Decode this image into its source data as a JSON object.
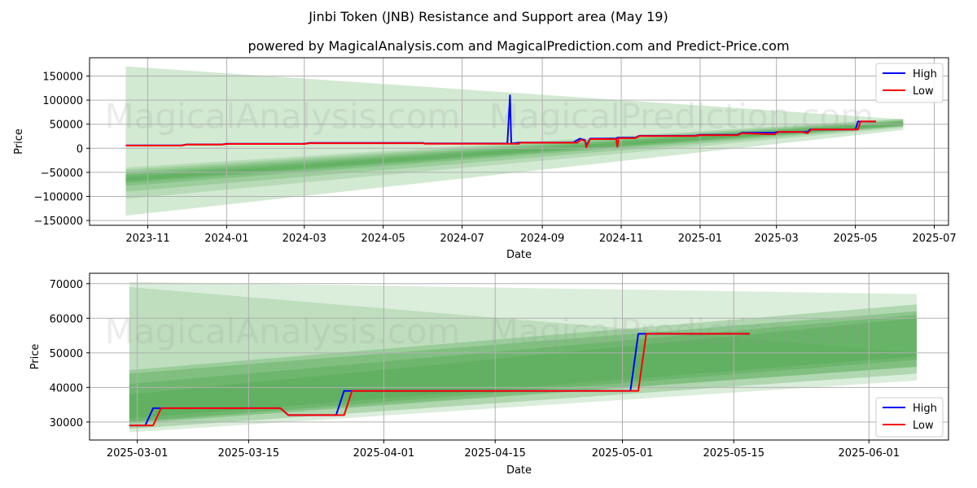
{
  "header": {
    "title": "Jinbi Token (JNB) Resistance and Support area (May 19)",
    "subtitle": "powered by MagicalAnalysis.com and MagicalPrediction.com and Predict-Price.com"
  },
  "watermarks": [
    "MagicalAnalysis.com",
    "MagicalPrediction.com"
  ],
  "colors": {
    "high": "#0000ff",
    "low": "#ff0000",
    "band": "#4ca64c",
    "grid": "#b0b0b0"
  },
  "chart_data": [
    {
      "type": "line",
      "name": "full-range",
      "title": "powered by MagicalAnalysis.com and MagicalPrediction.com and Predict-Price.com",
      "xlabel": "Date",
      "ylabel": "Price",
      "xlim": [
        "2023-09-17",
        "2025-07-12"
      ],
      "ylim": [
        -160000,
        188000
      ],
      "grid": true,
      "legend": "top-right",
      "x_ticks": [
        {
          "date": "2023-11-01",
          "label": "2023-11"
        },
        {
          "date": "2024-01-01",
          "label": "2024-01"
        },
        {
          "date": "2024-03-01",
          "label": "2024-03"
        },
        {
          "date": "2024-05-01",
          "label": "2024-05"
        },
        {
          "date": "2024-07-01",
          "label": "2024-07"
        },
        {
          "date": "2024-09-01",
          "label": "2024-09"
        },
        {
          "date": "2024-11-01",
          "label": "2024-11"
        },
        {
          "date": "2025-01-01",
          "label": "2025-01"
        },
        {
          "date": "2025-03-01",
          "label": "2025-03"
        },
        {
          "date": "2025-05-01",
          "label": "2025-05"
        },
        {
          "date": "2025-07-01",
          "label": "2025-07"
        }
      ],
      "y_ticks": [
        {
          "value": 150000,
          "label": "150000"
        },
        {
          "value": 100000,
          "label": "100000"
        },
        {
          "value": 50000,
          "label": "50000"
        },
        {
          "value": 0,
          "label": "0"
        },
        {
          "value": -50000,
          "label": "−50000"
        },
        {
          "value": -100000,
          "label": "−100000"
        },
        {
          "value": -150000,
          "label": "−150000"
        }
      ],
      "bands": [
        {
          "x0": "2023-10-15",
          "x1": "2025-06-07",
          "y0": [
            170000,
            -140000
          ],
          "y1": [
            60000,
            38000
          ],
          "opacity": 0.25
        },
        {
          "x0": "2023-10-15",
          "x1": "2025-06-07",
          "y0": [
            -40000,
            -105000
          ],
          "y1": [
            62000,
            43000
          ],
          "opacity": 0.2
        },
        {
          "x0": "2023-10-15",
          "x1": "2025-06-07",
          "y0": [
            -45000,
            -90000
          ],
          "y1": [
            60000,
            45000
          ],
          "opacity": 0.25
        },
        {
          "x0": "2023-10-15",
          "x1": "2025-06-07",
          "y0": [
            -50000,
            -78000
          ],
          "y1": [
            58000,
            46000
          ],
          "opacity": 0.3
        },
        {
          "x0": "2023-10-15",
          "x1": "2025-06-07",
          "y0": [
            -55000,
            -72000
          ],
          "y1": [
            56000,
            47000
          ],
          "opacity": 0.35
        },
        {
          "x0": "2023-10-15",
          "x1": "2025-06-07",
          "y0": [
            -60000,
            -68000
          ],
          "y1": [
            54000,
            48000
          ],
          "opacity": 0.35
        }
      ],
      "series": [
        {
          "name": "High",
          "color": "#0000ff",
          "points": [
            [
              "2023-10-15",
              6000
            ],
            [
              "2023-11-27",
              6000
            ],
            [
              "2023-12-01",
              8000
            ],
            [
              "2023-12-28",
              8000
            ],
            [
              "2024-01-01",
              9500
            ],
            [
              "2024-03-01",
              9500
            ],
            [
              "2024-03-05",
              11000
            ],
            [
              "2024-06-01",
              11000
            ],
            [
              "2024-06-02",
              10000
            ],
            [
              "2024-08-05",
              10000
            ],
            [
              "2024-08-07",
              110000
            ],
            [
              "2024-08-08",
              10000
            ],
            [
              "2024-08-15",
              12000
            ],
            [
              "2024-09-25",
              12000
            ],
            [
              "2024-09-30",
              20000
            ],
            [
              "2024-10-04",
              17000
            ],
            [
              "2024-10-05",
              5000
            ],
            [
              "2024-10-08",
              20000
            ],
            [
              "2024-10-28",
              20000
            ],
            [
              "2024-10-29",
              22000
            ],
            [
              "2024-11-12",
              22000
            ],
            [
              "2024-11-15",
              26000
            ],
            [
              "2024-12-28",
              26000
            ],
            [
              "2025-01-01",
              28000
            ],
            [
              "2025-01-30",
              28000
            ],
            [
              "2025-02-02",
              32000
            ],
            [
              "2025-02-28",
              32000
            ],
            [
              "2025-03-01",
              34000
            ],
            [
              "2025-03-25",
              34000
            ],
            [
              "2025-03-27",
              39000
            ],
            [
              "2025-05-01",
              39000
            ],
            [
              "2025-05-03",
              55500
            ],
            [
              "2025-05-17",
              55500
            ]
          ]
        },
        {
          "name": "Low",
          "color": "#ff0000",
          "points": [
            [
              "2023-10-15",
              5500
            ],
            [
              "2023-11-27",
              5500
            ],
            [
              "2023-12-01",
              7500
            ],
            [
              "2023-12-28",
              7500
            ],
            [
              "2024-01-01",
              9000
            ],
            [
              "2024-03-01",
              9000
            ],
            [
              "2024-03-05",
              10500
            ],
            [
              "2024-06-01",
              10500
            ],
            [
              "2024-06-02",
              9500
            ],
            [
              "2024-08-14",
              9500
            ],
            [
              "2024-08-15",
              11500
            ],
            [
              "2024-09-28",
              11500
            ],
            [
              "2024-10-01",
              18000
            ],
            [
              "2024-10-04",
              15000
            ],
            [
              "2024-10-05",
              2000
            ],
            [
              "2024-10-08",
              19000
            ],
            [
              "2024-10-28",
              19000
            ],
            [
              "2024-10-29",
              3000
            ],
            [
              "2024-10-30",
              21000
            ],
            [
              "2024-11-12",
              21000
            ],
            [
              "2024-11-15",
              25500
            ],
            [
              "2024-12-28",
              25500
            ],
            [
              "2025-01-01",
              27000
            ],
            [
              "2025-01-30",
              27000
            ],
            [
              "2025-02-02",
              31000
            ],
            [
              "2025-02-28",
              29000
            ],
            [
              "2025-03-02",
              34000
            ],
            [
              "2025-03-20",
              34000
            ],
            [
              "2025-03-25",
              31000
            ],
            [
              "2025-03-28",
              39000
            ],
            [
              "2025-05-03",
              39000
            ],
            [
              "2025-05-05",
              55500
            ],
            [
              "2025-05-17",
              55500
            ]
          ]
        }
      ]
    },
    {
      "type": "line",
      "name": "zoomed",
      "title": "",
      "xlabel": "Date",
      "ylabel": "Price",
      "xlim": [
        "2025-02-23",
        "2025-06-11"
      ],
      "ylim": [
        24800,
        73000
      ],
      "grid": true,
      "legend": "bottom-right",
      "x_ticks": [
        {
          "date": "2025-03-01",
          "label": "2025-03-01"
        },
        {
          "date": "2025-03-15",
          "label": "2025-03-15"
        },
        {
          "date": "2025-04-01",
          "label": "2025-04-01"
        },
        {
          "date": "2025-04-15",
          "label": "2025-04-15"
        },
        {
          "date": "2025-05-01",
          "label": "2025-05-01"
        },
        {
          "date": "2025-05-15",
          "label": "2025-05-15"
        },
        {
          "date": "2025-06-01",
          "label": "2025-06-01"
        }
      ],
      "y_ticks": [
        {
          "value": 70000,
          "label": "70000"
        },
        {
          "value": 60000,
          "label": "60000"
        },
        {
          "value": 50000,
          "label": "50000"
        },
        {
          "value": 40000,
          "label": "40000"
        },
        {
          "value": 30000,
          "label": "30000"
        }
      ],
      "bands": [
        {
          "x0": "2025-02-28",
          "x1": "2025-06-07",
          "y0": [
            70500,
            27000
          ],
          "y1": [
            67000,
            42000
          ],
          "opacity": 0.2
        },
        {
          "x0": "2025-02-28",
          "x1": "2025-06-07",
          "y0": [
            69000,
            30000
          ],
          "y1": [
            50000,
            46000
          ],
          "opacity": 0.2
        },
        {
          "x0": "2025-02-28",
          "x1": "2025-06-07",
          "y0": [
            45000,
            28000
          ],
          "y1": [
            64000,
            44000
          ],
          "opacity": 0.3
        },
        {
          "x0": "2025-02-28",
          "x1": "2025-06-07",
          "y0": [
            44000,
            29500
          ],
          "y1": [
            62000,
            46000
          ],
          "opacity": 0.35
        },
        {
          "x0": "2025-02-28",
          "x1": "2025-06-07",
          "y0": [
            41000,
            30000
          ],
          "y1": [
            61000,
            48000
          ],
          "opacity": 0.35
        },
        {
          "x0": "2025-02-28",
          "x1": "2025-06-07",
          "y0": [
            38000,
            31000
          ],
          "y1": [
            60000,
            49000
          ],
          "opacity": 0.35
        }
      ],
      "series": [
        {
          "name": "High",
          "color": "#0000ff",
          "points": [
            [
              "2025-02-28",
              29000
            ],
            [
              "2025-03-02",
              29000
            ],
            [
              "2025-03-03",
              34000
            ],
            [
              "2025-03-19",
              34000
            ],
            [
              "2025-03-20",
              32000
            ],
            [
              "2025-03-26",
              32000
            ],
            [
              "2025-03-27",
              39000
            ],
            [
              "2025-05-02",
              39000
            ],
            [
              "2025-05-03",
              55500
            ],
            [
              "2025-05-17",
              55500
            ]
          ]
        },
        {
          "name": "Low",
          "color": "#ff0000",
          "points": [
            [
              "2025-02-28",
              29000
            ],
            [
              "2025-03-03",
              29000
            ],
            [
              "2025-03-04",
              34000
            ],
            [
              "2025-03-19",
              34000
            ],
            [
              "2025-03-20",
              32000
            ],
            [
              "2025-03-27",
              32000
            ],
            [
              "2025-03-28",
              39000
            ],
            [
              "2025-05-03",
              39000
            ],
            [
              "2025-05-04",
              55500
            ],
            [
              "2025-05-17",
              55500
            ]
          ]
        }
      ]
    }
  ]
}
